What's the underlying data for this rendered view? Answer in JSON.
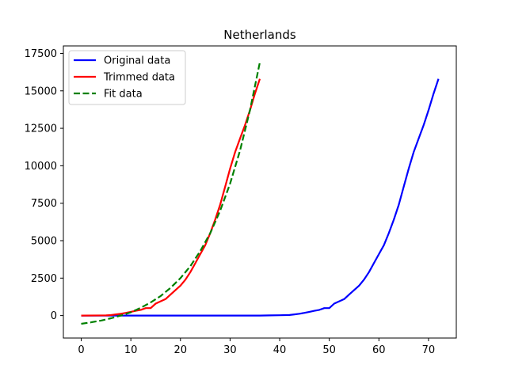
{
  "chart_data": {
    "type": "line",
    "title": "Netherlands",
    "xlabel": "",
    "ylabel": "",
    "xlim": [
      -3.6,
      75.6
    ],
    "ylim": [
      -1500,
      18000
    ],
    "xticks": [
      0,
      10,
      20,
      30,
      40,
      50,
      60,
      70
    ],
    "xtick_labels": [
      "0",
      "10",
      "20",
      "30",
      "40",
      "50",
      "60",
      "70"
    ],
    "yticks": [
      0,
      2500,
      5000,
      7500,
      10000,
      12500,
      15000,
      17500
    ],
    "ytick_labels": [
      "0",
      "2500",
      "5000",
      "7500",
      "10000",
      "12500",
      "15000",
      "17500"
    ],
    "grid": false,
    "legend_position": "top-left",
    "series": [
      {
        "name": "Original data",
        "color": "#0000ff",
        "style": "solid",
        "x": [
          0,
          36,
          38,
          40,
          42,
          43,
          44,
          45,
          46,
          47,
          48,
          49,
          50,
          51,
          52,
          53,
          54,
          55,
          56,
          57,
          58,
          59,
          60,
          61,
          62,
          63,
          64,
          65,
          66,
          67,
          68,
          69,
          70,
          71,
          72
        ],
        "y": [
          0,
          0,
          10,
          20,
          40,
          80,
          120,
          180,
          250,
          320,
          380,
          500,
          500,
          800,
          950,
          1100,
          1400,
          1700,
          2000,
          2400,
          2900,
          3500,
          4100,
          4700,
          5500,
          6400,
          7400,
          8600,
          9800,
          10900,
          11800,
          12700,
          13700,
          14800,
          15800
        ]
      },
      {
        "name": "Trimmed data",
        "color": "#ff0000",
        "style": "solid",
        "x": [
          0,
          5,
          6,
          7,
          8,
          9,
          10,
          11,
          12,
          13,
          14,
          15,
          16,
          17,
          18,
          19,
          20,
          21,
          22,
          23,
          24,
          25,
          26,
          27,
          28,
          29,
          30,
          31,
          32,
          33,
          34,
          35,
          36
        ],
        "y": [
          0,
          10,
          30,
          80,
          120,
          180,
          250,
          320,
          380,
          500,
          500,
          800,
          950,
          1100,
          1400,
          1700,
          2000,
          2400,
          2900,
          3500,
          4100,
          4700,
          5500,
          6400,
          7400,
          8600,
          9800,
          10900,
          11800,
          12700,
          13700,
          14800,
          15800
        ]
      },
      {
        "name": "Fit data",
        "color": "#008000",
        "style": "dashed",
        "x": [
          0,
          2,
          4,
          6,
          8,
          10,
          12,
          14,
          16,
          18,
          20,
          22,
          24,
          26,
          28,
          30,
          32,
          34,
          36
        ],
        "y": [
          -550,
          -450,
          -330,
          -180,
          0,
          220,
          520,
          880,
          1300,
          1850,
          2500,
          3300,
          4300,
          5500,
          7000,
          8800,
          11000,
          13700,
          16900
        ]
      }
    ]
  }
}
